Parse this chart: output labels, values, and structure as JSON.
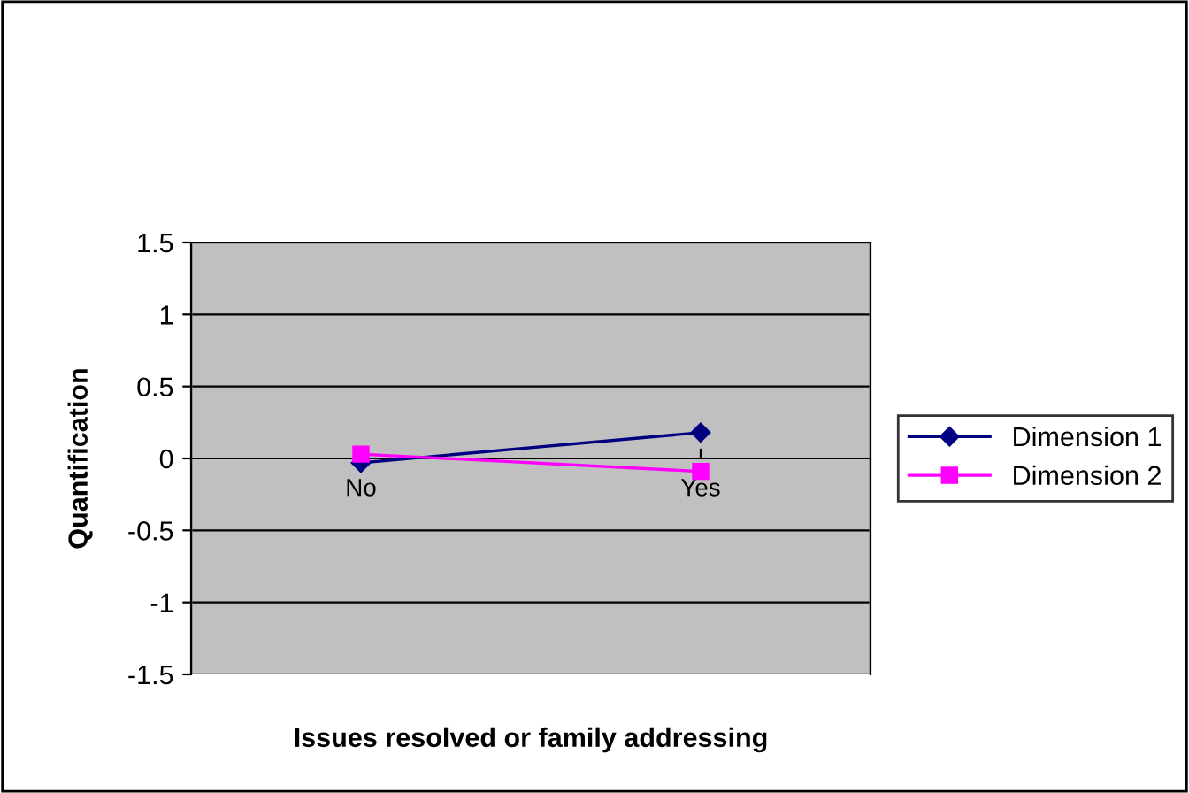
{
  "chart_data": {
    "type": "line",
    "xlabel": "Issues resolved or family addressing",
    "ylabel": "Quantification",
    "categories": [
      "No",
      "Yes"
    ],
    "series": [
      {
        "name": "Dimension 1",
        "color": "#000080",
        "values": [
          -0.03,
          0.18
        ],
        "marker": "diamond"
      },
      {
        "name": "Dimension 2",
        "color": "#ff00ff",
        "values": [
          0.03,
          -0.09
        ],
        "marker": "square"
      }
    ],
    "ylim": [
      -1.5,
      1.5
    ],
    "yticks": [
      -1.5,
      -1,
      -0.5,
      0,
      0.5,
      1,
      1.5
    ],
    "grid": "y",
    "legend": "right",
    "line_style": "solid"
  }
}
